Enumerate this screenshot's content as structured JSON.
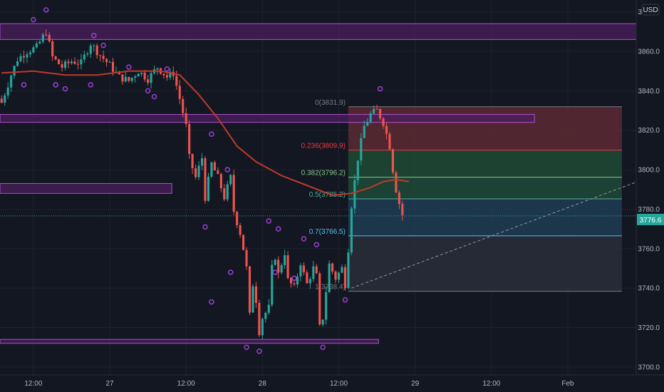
{
  "price_scale": {
    "currency": "USD",
    "current_price_label": "3776.6",
    "current_price": 3776.6
  },
  "colors": {
    "background": "#131722",
    "grid": "#1e222d",
    "up": "#26a69a",
    "down": "#ef5350",
    "ma": "#c0392b",
    "zone_fill": "#4a1f5c",
    "zone_border": "#b04fd0",
    "pivot_marker": "#9b3fd3",
    "price_line": "#26a69a"
  },
  "chart_data": {
    "type": "candlestick",
    "ylim": [
      3696,
      3886
    ],
    "y_ticks": [
      3700,
      3720,
      3740,
      3760,
      3780,
      3800,
      3820,
      3840,
      3860,
      3880
    ],
    "y_tick_labels": [
      "3700.0",
      "3720.0",
      "3740.0",
      "3760.0",
      "3780.0",
      "3800.0",
      "3820.0",
      "3840.0",
      "3860.0",
      "3880.0"
    ],
    "x_ticks": [
      {
        "label": "12:00",
        "bar": 10
      },
      {
        "label": "27",
        "bar": 34
      },
      {
        "label": "12:00",
        "bar": 58
      },
      {
        "label": "28",
        "bar": 82
      },
      {
        "label": "12:00",
        "bar": 106
      },
      {
        "label": "29",
        "bar": 130
      },
      {
        "label": "12:00",
        "bar": 154
      },
      {
        "label": "Feb",
        "bar": 178
      }
    ],
    "bar_count_visible": 200,
    "close_path": [
      [
        0,
        3834
      ],
      [
        3,
        3848
      ],
      [
        5,
        3856
      ],
      [
        8,
        3860
      ],
      [
        11,
        3862
      ],
      [
        14,
        3870
      ],
      [
        16,
        3857
      ],
      [
        19,
        3852
      ],
      [
        22,
        3855
      ],
      [
        25,
        3854
      ],
      [
        28,
        3864
      ],
      [
        31,
        3858
      ],
      [
        34,
        3853
      ],
      [
        37,
        3847
      ],
      [
        40,
        3845
      ],
      [
        43,
        3850
      ],
      [
        46,
        3846
      ],
      [
        49,
        3852
      ],
      [
        52,
        3847
      ],
      [
        54,
        3849
      ],
      [
        56,
        3836
      ],
      [
        58,
        3822
      ],
      [
        59,
        3806
      ],
      [
        61,
        3796
      ],
      [
        63,
        3806
      ],
      [
        64,
        3786
      ],
      [
        66,
        3803
      ],
      [
        68,
        3796
      ],
      [
        70,
        3786
      ],
      [
        72,
        3796
      ],
      [
        73,
        3779
      ],
      [
        75,
        3768
      ],
      [
        76,
        3760
      ],
      [
        77,
        3750
      ],
      [
        78,
        3726
      ],
      [
        79,
        3742
      ],
      [
        80,
        3734
      ],
      [
        81,
        3718
      ],
      [
        82,
        3725
      ],
      [
        84,
        3730
      ],
      [
        85,
        3750
      ],
      [
        86,
        3756
      ],
      [
        87,
        3747
      ],
      [
        89,
        3758
      ],
      [
        90,
        3744
      ],
      [
        92,
        3740
      ],
      [
        94,
        3753
      ],
      [
        95,
        3747
      ],
      [
        96,
        3742
      ],
      [
        98,
        3750
      ],
      [
        99,
        3746
      ],
      [
        100,
        3720
      ],
      [
        101,
        3725
      ],
      [
        103,
        3752
      ],
      [
        105,
        3745
      ],
      [
        107,
        3750
      ],
      [
        108,
        3742
      ],
      [
        109,
        3760
      ],
      [
        110,
        3782
      ],
      [
        112,
        3806
      ],
      [
        114,
        3822
      ],
      [
        116,
        3828
      ],
      [
        118,
        3830
      ],
      [
        120,
        3824
      ],
      [
        122,
        3812
      ],
      [
        123,
        3800
      ],
      [
        124,
        3790
      ],
      [
        125,
        3783
      ],
      [
        126,
        3777
      ]
    ],
    "moving_average": [
      [
        0,
        3849
      ],
      [
        10,
        3850
      ],
      [
        20,
        3848
      ],
      [
        30,
        3848
      ],
      [
        40,
        3850
      ],
      [
        50,
        3850
      ],
      [
        56,
        3848
      ],
      [
        62,
        3838
      ],
      [
        68,
        3826
      ],
      [
        74,
        3812
      ],
      [
        80,
        3804
      ],
      [
        88,
        3797
      ],
      [
        96,
        3792
      ],
      [
        104,
        3787
      ],
      [
        110,
        3788
      ],
      [
        116,
        3791
      ],
      [
        120,
        3794
      ],
      [
        124,
        3795
      ],
      [
        128,
        3794
      ]
    ],
    "fibonacci": {
      "start_bar": 109,
      "end_bar": 195,
      "levels": [
        {
          "label": "0(3831.9)",
          "value": 3831.9,
          "color": "#787b86",
          "fill": "#5c2a33"
        },
        {
          "label": "0.236(3809.9)",
          "value": 3809.9,
          "color": "#f23645",
          "fill": "#1f4a34"
        },
        {
          "label": "0.382(3796.2)",
          "value": 3796.2,
          "color": "#81c784",
          "fill": "#1e4a3a"
        },
        {
          "label": "0.5(3785.2)",
          "value": 3785.2,
          "color": "#4caf93",
          "fill": "#1f3d52"
        },
        {
          "label": "0.7(3766.5)",
          "value": 3766.5,
          "color": "#4fc3f7",
          "fill": "#2a2e39"
        },
        {
          "label": "1(3738.4)",
          "value": 3738.4,
          "color": "#787b86",
          "fill": null
        }
      ]
    },
    "trend_line": {
      "from": [
        110,
        3740
      ],
      "to": [
        200,
        3794
      ]
    },
    "zones": [
      {
        "top": 3874,
        "bottom": 3866,
        "from_bar": 0,
        "to_bar": 200
      },
      {
        "top": 3828,
        "bottom": 3824,
        "from_bar": 0,
        "to_bar": 168
      },
      {
        "top": 3793,
        "bottom": 3788,
        "from_bar": 0,
        "to_bar": 54
      },
      {
        "top": 3714,
        "bottom": 3712,
        "from_bar": 0,
        "to_bar": 119
      }
    ],
    "pivot_markers": {
      "highs": [
        [
          10,
          3876
        ],
        [
          14,
          3881
        ],
        [
          29,
          3868
        ],
        [
          32,
          3863
        ],
        [
          40,
          3852
        ],
        [
          52,
          3851
        ],
        [
          66,
          3818
        ],
        [
          71,
          3800
        ],
        [
          84,
          3774
        ],
        [
          87,
          3770
        ],
        [
          95,
          3765
        ],
        [
          99,
          3762
        ],
        [
          119,
          3841
        ]
      ],
      "lows": [
        [
          7,
          3843
        ],
        [
          17,
          3843
        ],
        [
          20,
          3841
        ],
        [
          28,
          3843
        ],
        [
          46,
          3840
        ],
        [
          48,
          3837
        ],
        [
          64,
          3771
        ],
        [
          66,
          3733
        ],
        [
          72,
          3748
        ],
        [
          77,
          3710
        ],
        [
          81,
          3708
        ],
        [
          86,
          3748
        ],
        [
          92,
          3745
        ],
        [
          101,
          3710
        ],
        [
          108,
          3734
        ]
      ]
    }
  }
}
